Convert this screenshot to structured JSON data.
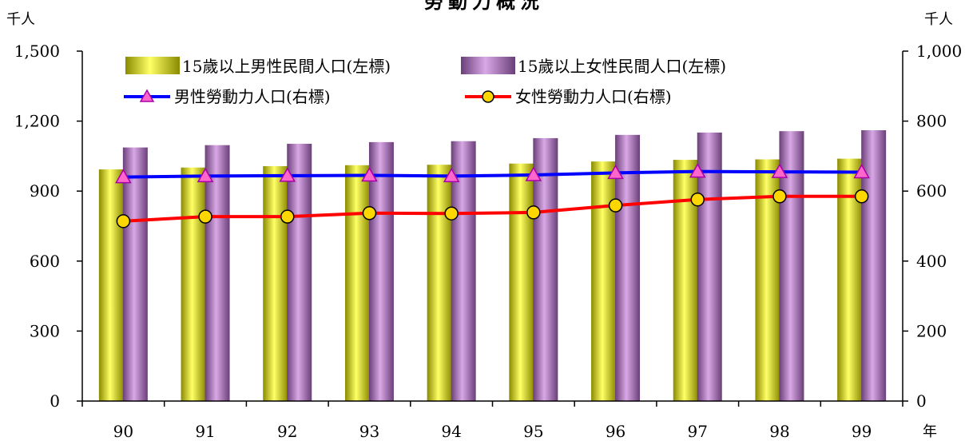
{
  "chart_data": {
    "type": "bar",
    "title": "勞動力概況",
    "left_unit": "千人",
    "right_unit": "千人",
    "x_unit": "年",
    "categories": [
      "90",
      "91",
      "92",
      "93",
      "94",
      "95",
      "96",
      "97",
      "98",
      "99"
    ],
    "left_axis": {
      "ylim": [
        0,
        1500
      ],
      "ticks": [
        "0",
        "300",
        "600",
        "900",
        "1,200",
        "1,500"
      ],
      "tick_values": [
        0,
        300,
        600,
        900,
        1200,
        1500
      ]
    },
    "right_axis": {
      "ylim": [
        0,
        1000
      ],
      "ticks": [
        "0",
        "200",
        "400",
        "600",
        "800",
        "1,000"
      ],
      "tick_values": [
        0,
        200,
        400,
        600,
        800,
        1000
      ]
    },
    "series": [
      {
        "name": "15歲以上男性民間人口(左標)",
        "type": "bar",
        "axis": "left",
        "color": "#e6e600",
        "values": [
          993,
          1001,
          1007,
          1011,
          1013,
          1018,
          1027,
          1034,
          1036,
          1039
        ]
      },
      {
        "name": "15歲以上女性民間人口(左標)",
        "type": "bar",
        "axis": "left",
        "color": "#b27bbf",
        "values": [
          1087,
          1097,
          1103,
          1110,
          1114,
          1127,
          1141,
          1151,
          1157,
          1161
        ]
      },
      {
        "name": "男性勞動力人口(右標)",
        "type": "line",
        "axis": "right",
        "color": "#0000ff",
        "marker": "triangle",
        "marker_color": "#ff66cc",
        "values": [
          640,
          643,
          644,
          645,
          643,
          646,
          652,
          656,
          655,
          654
        ]
      },
      {
        "name": "女性勞動力人口(右標)",
        "type": "line",
        "axis": "right",
        "color": "#ff0000",
        "marker": "circle",
        "marker_color": "#ffd700",
        "values": [
          514,
          527,
          527,
          537,
          536,
          539,
          559,
          576,
          585,
          585
        ]
      }
    ],
    "legend": "top-center",
    "grid": false
  }
}
